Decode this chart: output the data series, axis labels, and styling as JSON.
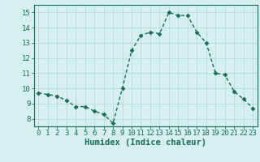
{
  "x": [
    0,
    1,
    2,
    3,
    4,
    5,
    6,
    7,
    8,
    9,
    10,
    11,
    12,
    13,
    14,
    15,
    16,
    17,
    18,
    19,
    20,
    21,
    22,
    23
  ],
  "y": [
    9.7,
    9.6,
    9.5,
    9.2,
    8.8,
    8.8,
    8.5,
    8.3,
    7.7,
    10.0,
    12.5,
    13.5,
    13.7,
    13.6,
    15.0,
    14.8,
    14.8,
    13.7,
    13.0,
    11.0,
    10.9,
    9.8,
    9.3,
    8.7
  ],
  "line_color": "#1a6b5a",
  "marker": "D",
  "marker_size": 2.5,
  "bg_color": "#d6f0f0",
  "grid_color": "#b8dada",
  "xlabel": "Humidex (Indice chaleur)",
  "xlabel_fontsize": 7.5,
  "tick_fontsize": 6.5,
  "ylim": [
    7.5,
    15.5
  ],
  "xlim": [
    -0.5,
    23.5
  ],
  "yticks": [
    8,
    9,
    10,
    11,
    12,
    13,
    14,
    15
  ],
  "xticks": [
    0,
    1,
    2,
    3,
    4,
    5,
    6,
    7,
    8,
    9,
    10,
    11,
    12,
    13,
    14,
    15,
    16,
    17,
    18,
    19,
    20,
    21,
    22,
    23
  ]
}
